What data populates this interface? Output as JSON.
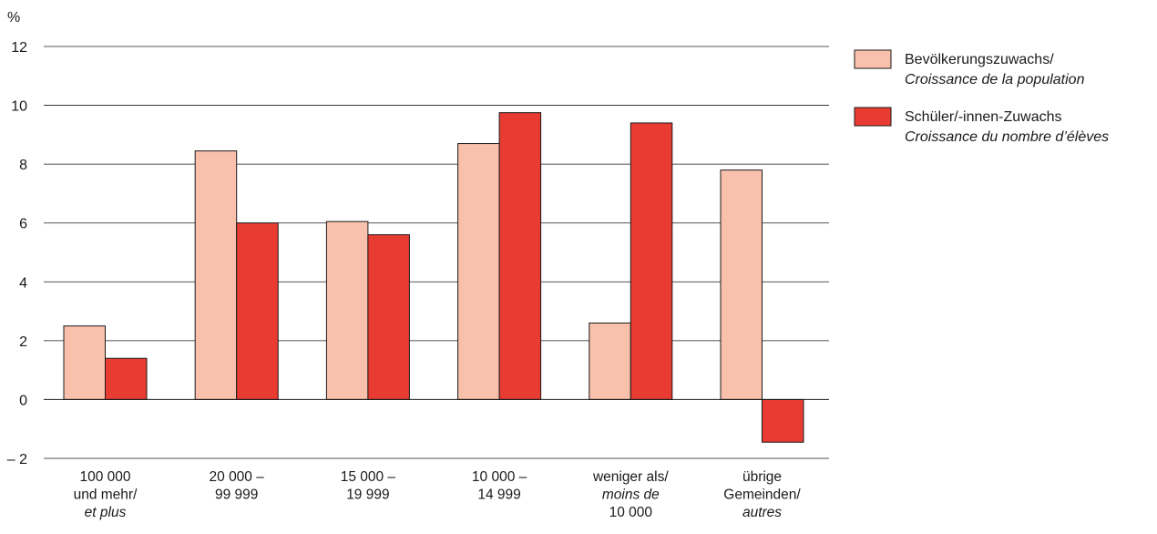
{
  "chart_data": {
    "type": "bar",
    "y_unit_label": "%",
    "ylim": [
      -2,
      12
    ],
    "yticks": [
      -2,
      0,
      2,
      4,
      6,
      8,
      10,
      12
    ],
    "ytick_labels": [
      "– 2",
      "0",
      "2",
      "4",
      "6",
      "8",
      "10",
      "12"
    ],
    "grid": true,
    "legend_position": "top-right",
    "categories": [
      {
        "lines": [
          {
            "text": "100 000",
            "italic": false
          },
          {
            "text": "und mehr/",
            "italic": false
          },
          {
            "text": "et plus",
            "italic": true
          }
        ]
      },
      {
        "lines": [
          {
            "text": "20 000 –",
            "italic": false
          },
          {
            "text": "99 999",
            "italic": false
          }
        ]
      },
      {
        "lines": [
          {
            "text": "15 000 –",
            "italic": false
          },
          {
            "text": "19 999",
            "italic": false
          }
        ]
      },
      {
        "lines": [
          {
            "text": "10 000 –",
            "italic": false
          },
          {
            "text": "14 999",
            "italic": false
          }
        ]
      },
      {
        "lines": [
          {
            "text": "weniger als/",
            "italic": false
          },
          {
            "text": "moins de",
            "italic": true
          },
          {
            "text": "10 000",
            "italic": false
          }
        ]
      },
      {
        "lines": [
          {
            "text": "übrige",
            "italic": false
          },
          {
            "text": "Gemeinden/",
            "italic": false
          },
          {
            "text": "autres",
            "italic": true
          }
        ]
      }
    ],
    "series": [
      {
        "name_lines": [
          {
            "text": "Bevölkerungszuwachs/",
            "italic": false
          },
          {
            "text": "Croissance de la population",
            "italic": true
          }
        ],
        "color": "#f9c0ab",
        "values": [
          2.5,
          8.45,
          6.05,
          8.7,
          2.6,
          7.8
        ]
      },
      {
        "name_lines": [
          {
            "text": "Schüler/-innen-Zuwachs",
            "italic": false
          },
          {
            "text": "Croissance du nombre d’élèves",
            "italic": true
          }
        ],
        "color": "#e83c33",
        "values": [
          1.4,
          6.0,
          5.6,
          9.75,
          9.4,
          -1.45
        ]
      }
    ]
  }
}
